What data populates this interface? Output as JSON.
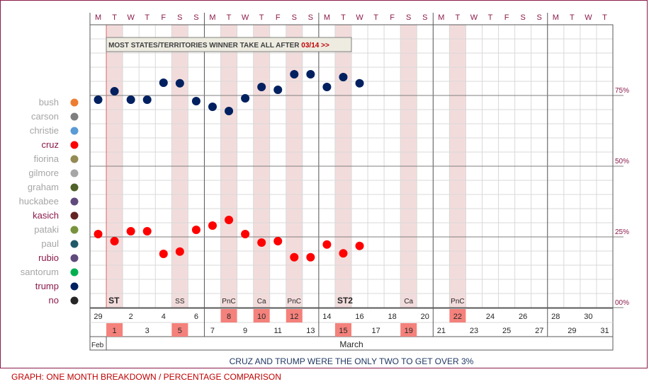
{
  "chart_data": {
    "type": "scatter",
    "day_letters": [
      "M",
      "T",
      "W",
      "T",
      "F",
      "S",
      "S",
      "M",
      "T",
      "W",
      "T",
      "F",
      "S",
      "S",
      "M",
      "T",
      "W",
      "T",
      "F",
      "S",
      "S",
      "M",
      "T",
      "W",
      "T",
      "F",
      "S",
      "S",
      "M",
      "T",
      "W",
      "T"
    ],
    "date_labels": [
      "Feb 29",
      "Mar 1",
      "Mar 2",
      "Mar 3",
      "Mar 4",
      "Mar 5",
      "Mar 6",
      "Mar 7",
      "Mar 8",
      "Mar 9",
      "Mar 10",
      "Mar 11",
      "Mar 12",
      "Mar 13",
      "Mar 14",
      "Mar 15",
      "Mar 16",
      "Mar 17",
      "Mar 18",
      "Mar 19",
      "Mar 20",
      "Mar 21",
      "Mar 22",
      "Mar 23",
      "Mar 24",
      "Mar 25",
      "Mar 26",
      "Mar 27",
      "Mar 28",
      "Mar 29",
      "Mar 30",
      "Mar 31"
    ],
    "date_numbers": [
      "29",
      "1",
      "2",
      "3",
      "4",
      "5",
      "6",
      "7",
      "8",
      "9",
      "10",
      "11",
      "12",
      "13",
      "14",
      "15",
      "16",
      "17",
      "18",
      "19",
      "20",
      "21",
      "22",
      "23",
      "24",
      "25",
      "26",
      "27",
      "28",
      "29",
      "30",
      "31"
    ],
    "highlighted_dates": [
      "Mar 1",
      "Mar 5",
      "Mar 8",
      "Mar 10",
      "Mar 12",
      "Mar 15",
      "Mar 19",
      "Mar 22"
    ],
    "event_labels": [
      {
        "x": "Mar 1",
        "text": "ST",
        "bold": true
      },
      {
        "x": "Mar 5",
        "text": "SS",
        "bold": false
      },
      {
        "x": "Mar 8",
        "text": "PnC",
        "bold": false
      },
      {
        "x": "Mar 10",
        "text": "Ca",
        "bold": false
      },
      {
        "x": "Mar 12",
        "text": "PnC",
        "bold": false
      },
      {
        "x": "Mar 15",
        "text": "ST2",
        "bold": true
      },
      {
        "x": "Mar 19",
        "text": "Ca",
        "bold": false
      },
      {
        "x": "Mar 22",
        "text": "PnC",
        "bold": false
      }
    ],
    "month_labels": [
      {
        "x": "Feb 29",
        "text": "Feb"
      },
      {
        "x": "Mar 16",
        "text": "March"
      }
    ],
    "ylim": [
      0,
      100
    ],
    "y_ticks": [
      0,
      25,
      50,
      75
    ],
    "y_tick_labels": [
      "00%",
      "25%",
      "50%",
      "75%"
    ],
    "annotation": {
      "text": "MOST STATES/TERRITORIES WINNER TAKE ALL AFTER",
      "highlight": "03/14 >>"
    },
    "legend_position": "left",
    "legend": [
      {
        "name": "bush",
        "color": "#ed7d31",
        "active": false
      },
      {
        "name": "carson",
        "color": "#7f7f7f",
        "active": false
      },
      {
        "name": "christie",
        "color": "#5b9bd5",
        "active": false
      },
      {
        "name": "cruz",
        "color": "#ff0000",
        "active": true
      },
      {
        "name": "fiorina",
        "color": "#948a54",
        "active": false
      },
      {
        "name": "gilmore",
        "color": "#a6a6a6",
        "active": false
      },
      {
        "name": "graham",
        "color": "#4f6228",
        "active": false
      },
      {
        "name": "huckabee",
        "color": "#604a7b",
        "active": false
      },
      {
        "name": "kasich",
        "color": "#632523",
        "active": true
      },
      {
        "name": "pataki",
        "color": "#77933c",
        "active": false
      },
      {
        "name": "paul",
        "color": "#215968",
        "active": false
      },
      {
        "name": "rubio",
        "color": "#604a7b",
        "active": true
      },
      {
        "name": "santorum",
        "color": "#00b050",
        "active": false
      },
      {
        "name": "trump",
        "color": "#002060",
        "active": true
      },
      {
        "name": "no",
        "color": "#262626",
        "active": true
      }
    ],
    "series": [
      {
        "name": "trump",
        "color": "#002060",
        "points": [
          {
            "x": "Feb 29",
            "y": 73.5
          },
          {
            "x": "Mar 1",
            "y": 76.5
          },
          {
            "x": "Mar 2",
            "y": 73.5
          },
          {
            "x": "Mar 3",
            "y": 73.5
          },
          {
            "x": "Mar 4",
            "y": 79.5
          },
          {
            "x": "Mar 5",
            "y": 79.3
          },
          {
            "x": "Mar 6",
            "y": 73
          },
          {
            "x": "Mar 7",
            "y": 71
          },
          {
            "x": "Mar 8",
            "y": 69.5
          },
          {
            "x": "Mar 9",
            "y": 74
          },
          {
            "x": "Mar 10",
            "y": 78
          },
          {
            "x": "Mar 11",
            "y": 77
          },
          {
            "x": "Mar 12",
            "y": 82.5
          },
          {
            "x": "Mar 13",
            "y": 82.5
          },
          {
            "x": "Mar 14",
            "y": 78
          },
          {
            "x": "Mar 15",
            "y": 81.5
          },
          {
            "x": "Mar 16",
            "y": 79.3
          }
        ]
      },
      {
        "name": "cruz",
        "color": "#ff0000",
        "points": [
          {
            "x": "Feb 29",
            "y": 26
          },
          {
            "x": "Mar 1",
            "y": 23.5
          },
          {
            "x": "Mar 2",
            "y": 27
          },
          {
            "x": "Mar 3",
            "y": 27
          },
          {
            "x": "Mar 4",
            "y": 19
          },
          {
            "x": "Mar 5",
            "y": 19.8
          },
          {
            "x": "Mar 6",
            "y": 27.5
          },
          {
            "x": "Mar 7",
            "y": 29
          },
          {
            "x": "Mar 8",
            "y": 31
          },
          {
            "x": "Mar 9",
            "y": 26
          },
          {
            "x": "Mar 10",
            "y": 23
          },
          {
            "x": "Mar 11",
            "y": 23.5
          },
          {
            "x": "Mar 12",
            "y": 17.8
          },
          {
            "x": "Mar 13",
            "y": 17.8
          },
          {
            "x": "Mar 14",
            "y": 22.3
          },
          {
            "x": "Mar 15",
            "y": 19.2
          },
          {
            "x": "Mar 16",
            "y": 21.8
          }
        ]
      }
    ],
    "caption": "CRUZ AND TRUMP WERE THE ONLY TWO TO GET OVER 3%"
  },
  "footer": {
    "text": "GRAPH: ONE MONTH BREAKDOWN / PERCENTAGE COMPARISON"
  }
}
